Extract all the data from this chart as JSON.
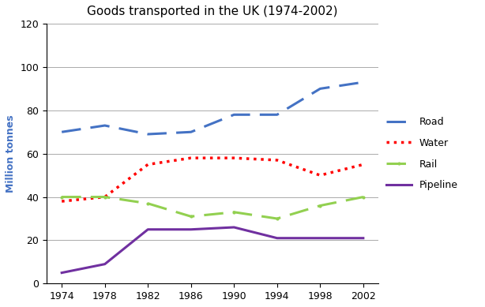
{
  "title": "Goods transported in the UK (1974-2002)",
  "ylabel": "Million tonnes",
  "years": [
    1974,
    1978,
    1982,
    1986,
    1990,
    1994,
    1998,
    2002
  ],
  "series": {
    "Road": {
      "values": [
        70,
        73,
        69,
        70,
        78,
        78,
        90,
        93
      ],
      "color": "#4472C4",
      "linestyle": "--",
      "marker": "None",
      "markersize": 0,
      "linewidth": 2.2,
      "dashes": [
        8,
        4
      ]
    },
    "Water": {
      "values": [
        38,
        40,
        55,
        58,
        58,
        57,
        50,
        55
      ],
      "color": "#FF0000",
      "linestyle": ":",
      "marker": "None",
      "markersize": 0,
      "linewidth": 2.5,
      "dashes": null
    },
    "Rail": {
      "values": [
        40,
        40,
        37,
        31,
        33,
        30,
        36,
        40
      ],
      "color": "#92D050",
      "linestyle": "--",
      "marker": ".",
      "markersize": 4,
      "linewidth": 2.2,
      "dashes": [
        8,
        4
      ]
    },
    "Pipeline": {
      "values": [
        5,
        9,
        25,
        25,
        26,
        21,
        21,
        21
      ],
      "color": "#7030A0",
      "linestyle": "-",
      "marker": "None",
      "markersize": 0,
      "linewidth": 2.2,
      "dashes": null
    }
  },
  "ylim": [
    0,
    120
  ],
  "yticks": [
    0,
    20,
    40,
    60,
    80,
    100,
    120
  ],
  "xticks": [
    1974,
    1978,
    1982,
    1986,
    1990,
    1994,
    1998,
    2002
  ],
  "background_color": "#FFFFFF",
  "plot_bg_color": "#FFFFFF",
  "grid_color": "#AAAAAA",
  "grid_linewidth": 0.7,
  "title_fontsize": 11,
  "label_fontsize": 9,
  "tick_fontsize": 9,
  "ylabel_color": "#4472C4",
  "legend_fontsize": 9
}
